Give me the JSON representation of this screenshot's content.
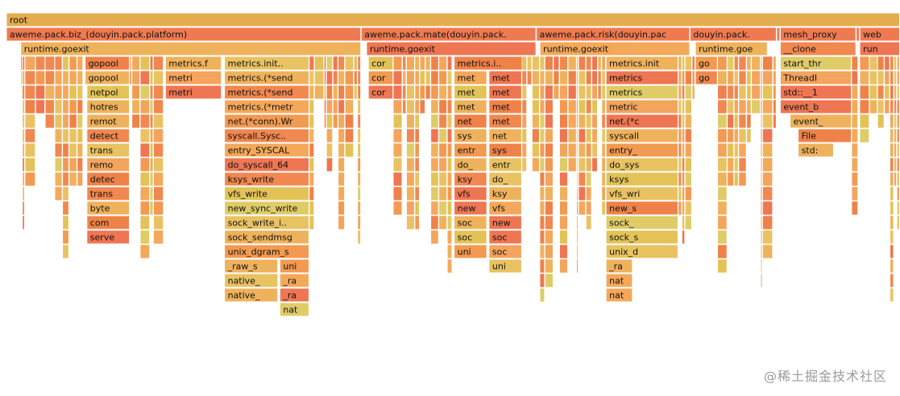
{
  "chart_data": {
    "type": "flamegraph",
    "frames": [
      {
        "name": "root",
        "depth": 0,
        "start": 0.0,
        "width": 1.0
      },
      {
        "name": "aweme.pack.biz_(douyin.pack.platform)",
        "depth": 1,
        "start": 0.0,
        "width": 0.397
      },
      {
        "name": "aweme.pack.mate(douyin.pack.",
        "depth": 1,
        "start": 0.397,
        "width": 0.196
      },
      {
        "name": "aweme.pack.risk(douyin.pac",
        "depth": 1,
        "start": 0.593,
        "width": 0.172
      },
      {
        "name": "douyin.pack.",
        "depth": 1,
        "start": 0.765,
        "width": 0.097
      },
      {
        "name": "",
        "depth": 1,
        "start": 0.862,
        "width": 0.004
      },
      {
        "name": "mesh_proxy",
        "depth": 1,
        "start": 0.866,
        "width": 0.085
      },
      {
        "name": "",
        "depth": 1,
        "start": 0.951,
        "width": 0.004
      },
      {
        "name": "web",
        "depth": 1,
        "start": 0.955,
        "width": 0.045
      },
      {
        "name": "runtime.goexit",
        "depth": 2,
        "start": 0.016,
        "width": 0.381
      },
      {
        "name": "runtime.goexit",
        "depth": 2,
        "start": 0.403,
        "width": 0.19
      },
      {
        "name": "runtime.goexit",
        "depth": 2,
        "start": 0.597,
        "width": 0.168
      },
      {
        "name": "runtime.goe",
        "depth": 2,
        "start": 0.771,
        "width": 0.081
      },
      {
        "name": "__clone",
        "depth": 2,
        "start": 0.866,
        "width": 0.085
      },
      {
        "name": "run",
        "depth": 2,
        "start": 0.955,
        "width": 0.045
      },
      {
        "name": "core",
        "depth": 3,
        "start": 0.017,
        "width": 0.042
      },
      {
        "name": "gopool",
        "depth": 3,
        "start": 0.088,
        "width": 0.05
      },
      {
        "name": "metrics.f",
        "depth": 3,
        "start": 0.178,
        "width": 0.063
      },
      {
        "name": "metrics.init.0.fu",
        "depth": 3,
        "start": 0.244,
        "width": 0.095
      },
      {
        "name": "cor",
        "depth": 3,
        "start": 0.405,
        "width": 0.028
      },
      {
        "name": "metrics.init",
        "depth": 3,
        "start": 0.501,
        "width": 0.077
      },
      {
        "name": "metrics.init",
        "depth": 3,
        "start": 0.671,
        "width": 0.081
      },
      {
        "name": "go",
        "depth": 3,
        "start": 0.771,
        "width": 0.025
      },
      {
        "name": "start_thr",
        "depth": 3,
        "start": 0.866,
        "width": 0.08
      },
      {
        "name": "run",
        "depth": 3,
        "start": 0.955,
        "width": 0.04
      },
      {
        "name": "core",
        "depth": 4,
        "start": 0.017,
        "width": 0.042
      },
      {
        "name": "gopool",
        "depth": 4,
        "start": 0.088,
        "width": 0.05
      },
      {
        "name": "metri",
        "depth": 4,
        "start": 0.178,
        "width": 0.063
      },
      {
        "name": "metrics.(*send",
        "depth": 4,
        "start": 0.244,
        "width": 0.095
      },
      {
        "name": "cor",
        "depth": 4,
        "start": 0.405,
        "width": 0.028
      },
      {
        "name": "met",
        "depth": 4,
        "start": 0.501,
        "width": 0.037
      },
      {
        "name": "met",
        "depth": 4,
        "start": 0.54,
        "width": 0.037
      },
      {
        "name": "metrics",
        "depth": 4,
        "start": 0.671,
        "width": 0.081
      },
      {
        "name": "go",
        "depth": 4,
        "start": 0.771,
        "width": 0.025
      },
      {
        "name": "ThreadI",
        "depth": 4,
        "start": 0.866,
        "width": 0.08
      },
      {
        "name": "core",
        "depth": 5,
        "start": 0.017,
        "width": 0.042
      },
      {
        "name": "netpol",
        "depth": 5,
        "start": 0.09,
        "width": 0.048
      },
      {
        "name": "metri",
        "depth": 5,
        "start": 0.178,
        "width": 0.063
      },
      {
        "name": "metrics.(*send",
        "depth": 5,
        "start": 0.244,
        "width": 0.095
      },
      {
        "name": "cor",
        "depth": 5,
        "start": 0.405,
        "width": 0.028
      },
      {
        "name": "met",
        "depth": 5,
        "start": 0.501,
        "width": 0.037
      },
      {
        "name": "met",
        "depth": 5,
        "start": 0.54,
        "width": 0.037
      },
      {
        "name": "metrics",
        "depth": 5,
        "start": 0.671,
        "width": 0.081
      },
      {
        "name": "std::__1",
        "depth": 5,
        "start": 0.866,
        "width": 0.08
      },
      {
        "name": "hotres",
        "depth": 6,
        "start": 0.09,
        "width": 0.048
      },
      {
        "name": "metrics.(*metr",
        "depth": 6,
        "start": 0.244,
        "width": 0.095
      },
      {
        "name": "met",
        "depth": 6,
        "start": 0.501,
        "width": 0.037
      },
      {
        "name": "met",
        "depth": 6,
        "start": 0.54,
        "width": 0.037
      },
      {
        "name": "metric",
        "depth": 6,
        "start": 0.671,
        "width": 0.081
      },
      {
        "name": "event_b",
        "depth": 6,
        "start": 0.866,
        "width": 0.08
      },
      {
        "name": "remot",
        "depth": 7,
        "start": 0.09,
        "width": 0.048
      },
      {
        "name": "net.(*conn).Wr",
        "depth": 7,
        "start": 0.244,
        "width": 0.095
      },
      {
        "name": "net",
        "depth": 7,
        "start": 0.501,
        "width": 0.037
      },
      {
        "name": "met",
        "depth": 7,
        "start": 0.54,
        "width": 0.037
      },
      {
        "name": "net.(*c",
        "depth": 7,
        "start": 0.671,
        "width": 0.081
      },
      {
        "name": "event_",
        "depth": 7,
        "start": 0.877,
        "width": 0.069
      },
      {
        "name": "detect",
        "depth": 8,
        "start": 0.09,
        "width": 0.048
      },
      {
        "name": "syscall.Syscall",
        "depth": 8,
        "start": 0.244,
        "width": 0.095
      },
      {
        "name": "sys",
        "depth": 8,
        "start": 0.501,
        "width": 0.037
      },
      {
        "name": "net",
        "depth": 8,
        "start": 0.54,
        "width": 0.037
      },
      {
        "name": "syscall",
        "depth": 8,
        "start": 0.671,
        "width": 0.081
      },
      {
        "name": "File",
        "depth": 8,
        "start": 0.886,
        "width": 0.06
      },
      {
        "name": "trans",
        "depth": 9,
        "start": 0.09,
        "width": 0.048
      },
      {
        "name": "entry_SYSCAL",
        "depth": 9,
        "start": 0.244,
        "width": 0.095
      },
      {
        "name": "entr",
        "depth": 9,
        "start": 0.501,
        "width": 0.037
      },
      {
        "name": "sys",
        "depth": 9,
        "start": 0.54,
        "width": 0.037
      },
      {
        "name": "entry_",
        "depth": 9,
        "start": 0.671,
        "width": 0.081
      },
      {
        "name": "std:",
        "depth": 9,
        "start": 0.886,
        "width": 0.04
      },
      {
        "name": "remo",
        "depth": 10,
        "start": 0.09,
        "width": 0.048
      },
      {
        "name": "do_syscall_64",
        "depth": 10,
        "start": 0.244,
        "width": 0.095
      },
      {
        "name": "do_",
        "depth": 10,
        "start": 0.501,
        "width": 0.037
      },
      {
        "name": "entr",
        "depth": 10,
        "start": 0.54,
        "width": 0.037
      },
      {
        "name": "do_sys",
        "depth": 10,
        "start": 0.671,
        "width": 0.081
      },
      {
        "name": "detec",
        "depth": 11,
        "start": 0.09,
        "width": 0.048
      },
      {
        "name": "ksys_write",
        "depth": 11,
        "start": 0.244,
        "width": 0.095
      },
      {
        "name": "ksy",
        "depth": 11,
        "start": 0.501,
        "width": 0.037
      },
      {
        "name": "do_",
        "depth": 11,
        "start": 0.54,
        "width": 0.037
      },
      {
        "name": "ksys",
        "depth": 11,
        "start": 0.671,
        "width": 0.081
      },
      {
        "name": "trans",
        "depth": 12,
        "start": 0.09,
        "width": 0.048
      },
      {
        "name": "vfs_write",
        "depth": 12,
        "start": 0.244,
        "width": 0.095
      },
      {
        "name": "vfs",
        "depth": 12,
        "start": 0.501,
        "width": 0.037
      },
      {
        "name": "ksy",
        "depth": 12,
        "start": 0.54,
        "width": 0.037
      },
      {
        "name": "vfs_wri",
        "depth": 12,
        "start": 0.671,
        "width": 0.081
      },
      {
        "name": "byte",
        "depth": 13,
        "start": 0.09,
        "width": 0.048
      },
      {
        "name": "new_sync_write",
        "depth": 13,
        "start": 0.244,
        "width": 0.095
      },
      {
        "name": "new",
        "depth": 13,
        "start": 0.501,
        "width": 0.037
      },
      {
        "name": "vfs",
        "depth": 13,
        "start": 0.54,
        "width": 0.037
      },
      {
        "name": "new_s",
        "depth": 13,
        "start": 0.671,
        "width": 0.081
      },
      {
        "name": "com",
        "depth": 14,
        "start": 0.09,
        "width": 0.048
      },
      {
        "name": "sock_write_iter",
        "depth": 14,
        "start": 0.244,
        "width": 0.095
      },
      {
        "name": "soc",
        "depth": 14,
        "start": 0.501,
        "width": 0.037
      },
      {
        "name": "new",
        "depth": 14,
        "start": 0.54,
        "width": 0.037
      },
      {
        "name": "sock_",
        "depth": 14,
        "start": 0.671,
        "width": 0.081
      },
      {
        "name": "serve",
        "depth": 15,
        "start": 0.09,
        "width": 0.048
      },
      {
        "name": "sock_sendmsg",
        "depth": 15,
        "start": 0.244,
        "width": 0.095
      },
      {
        "name": "soc",
        "depth": 15,
        "start": 0.501,
        "width": 0.037
      },
      {
        "name": "soc",
        "depth": 15,
        "start": 0.54,
        "width": 0.037
      },
      {
        "name": "sock_s",
        "depth": 15,
        "start": 0.671,
        "width": 0.081
      },
      {
        "name": "unix_dgram_s",
        "depth": 16,
        "start": 0.244,
        "width": 0.095
      },
      {
        "name": "uni",
        "depth": 16,
        "start": 0.501,
        "width": 0.037
      },
      {
        "name": "soc",
        "depth": 16,
        "start": 0.54,
        "width": 0.037
      },
      {
        "name": "unix_d",
        "depth": 16,
        "start": 0.671,
        "width": 0.081
      },
      {
        "name": "_raw_s",
        "depth": 17,
        "start": 0.244,
        "width": 0.06
      },
      {
        "name": "uni",
        "depth": 17,
        "start": 0.306,
        "width": 0.033
      },
      {
        "name": "uni",
        "depth": 17,
        "start": 0.54,
        "width": 0.037
      },
      {
        "name": "_ra",
        "depth": 17,
        "start": 0.671,
        "width": 0.03
      },
      {
        "name": "native_",
        "depth": 18,
        "start": 0.244,
        "width": 0.06
      },
      {
        "name": "_ra",
        "depth": 18,
        "start": 0.306,
        "width": 0.033
      },
      {
        "name": "nat",
        "depth": 18,
        "start": 0.671,
        "width": 0.03
      },
      {
        "name": "native_",
        "depth": 19,
        "start": 0.244,
        "width": 0.06
      },
      {
        "name": "_ra",
        "depth": 19,
        "start": 0.306,
        "width": 0.033
      },
      {
        "name": "nat",
        "depth": 19,
        "start": 0.671,
        "width": 0.03
      },
      {
        "name": "nat",
        "depth": 20,
        "start": 0.306,
        "width": 0.033
      }
    ]
  },
  "watermark": "@稀土掘金技术社区",
  "colors": {
    "root": "#e3ad4f",
    "top": "#ef7a51",
    "palette": [
      "#f08850",
      "#ee7652",
      "#f29a51",
      "#f4a85a",
      "#efb25c",
      "#e3c357",
      "#dfcc67",
      "#e9c262",
      "#f3a45d",
      "#ee8249"
    ]
  }
}
